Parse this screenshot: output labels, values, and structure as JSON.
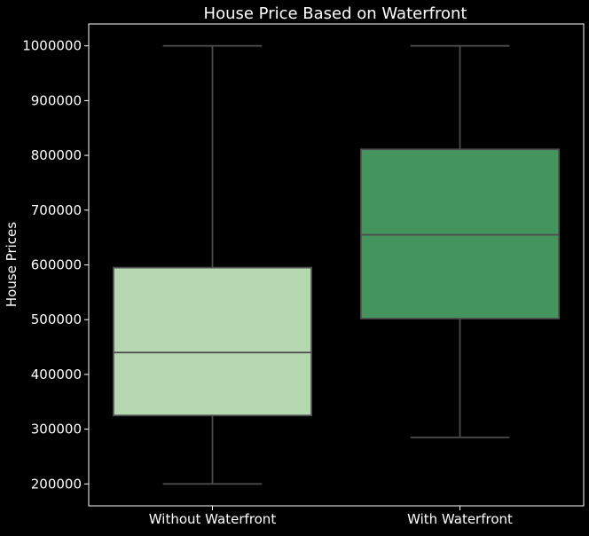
{
  "chart_data": {
    "type": "box",
    "title": "House Price Based on Waterfront",
    "xlabel": "",
    "ylabel": "House Prices",
    "ylim": [
      160000,
      1040000
    ],
    "yticks": [
      200000,
      300000,
      400000,
      500000,
      600000,
      700000,
      800000,
      900000,
      1000000
    ],
    "ytick_labels": [
      "200000",
      "300000",
      "400000",
      "500000",
      "600000",
      "700000",
      "800000",
      "900000",
      "1000000"
    ],
    "categories": [
      "Without Waterfront",
      "With Waterfront"
    ],
    "boxes": [
      {
        "category": "Without Waterfront",
        "whisker_low": 200000,
        "q1": 325000,
        "median": 440000,
        "q3": 595000,
        "whisker_high": 1000000,
        "color": "#b5d8b0"
      },
      {
        "category": "With Waterfront",
        "whisker_low": 285000,
        "q1": 502000,
        "median": 655000,
        "q3": 811000,
        "whisker_high": 1000000,
        "color": "#44955d"
      }
    ],
    "grid": false,
    "background": "#000000",
    "line_color": "#4d4d4d",
    "text_color": "#ffffff"
  }
}
